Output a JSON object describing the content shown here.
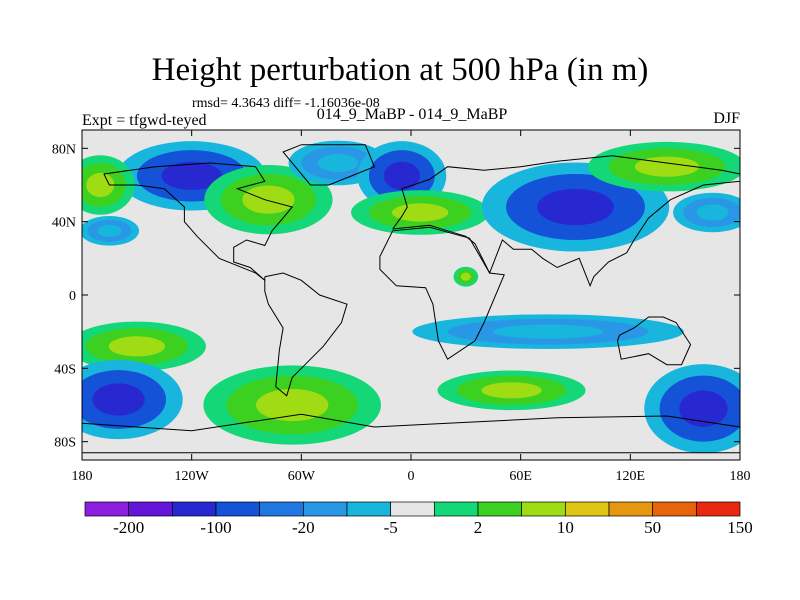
{
  "header": {
    "title": "Height perturbation at 500 hPa (in m)",
    "stats": "rmsd= 4.3643 diff= -1.16036e-08",
    "expt": "Expt = tfgwd-teyed",
    "case": "014_9_MaBP - 014_9_MaBP",
    "season": "DJF"
  },
  "chart_data": {
    "type": "heatmap",
    "title": "Height perturbation at 500 hPa (in m)",
    "xlabel": "",
    "ylabel": "",
    "xlim": [
      -180,
      180
    ],
    "ylim": [
      -90,
      90
    ],
    "x_ticks": [
      {
        "value": -180,
        "label": "180"
      },
      {
        "value": -120,
        "label": "120W"
      },
      {
        "value": -60,
        "label": "60W"
      },
      {
        "value": 0,
        "label": "0"
      },
      {
        "value": 60,
        "label": "60E"
      },
      {
        "value": 120,
        "label": "120E"
      },
      {
        "value": 180,
        "label": "180"
      }
    ],
    "y_ticks": [
      {
        "value": 80,
        "label": "80N"
      },
      {
        "value": 40,
        "label": "40N"
      },
      {
        "value": 0,
        "label": "0"
      },
      {
        "value": -40,
        "label": "40S"
      },
      {
        "value": -80,
        "label": "80S"
      }
    ],
    "colorbar": {
      "colors": [
        "#8c1fe0",
        "#6414d8",
        "#2828d0",
        "#1452d8",
        "#1e78e0",
        "#2a96e6",
        "#18b6dc",
        "#e6e6e6",
        "#14d878",
        "#3cd020",
        "#a0dc14",
        "#e0c614",
        "#e6960f",
        "#e8640c",
        "#e82810"
      ],
      "labels": [
        "-200",
        "-100",
        "-20",
        "-5",
        "2",
        "10",
        "50",
        "150"
      ]
    },
    "anomalies": [
      {
        "lon": -120,
        "lat": 65,
        "rx": 30,
        "ry": 14,
        "value": -20
      },
      {
        "lon": -170,
        "lat": 60,
        "rx": 14,
        "ry": 12,
        "value": 10
      },
      {
        "lon": -165,
        "lat": 35,
        "rx": 12,
        "ry": 6,
        "value": -5
      },
      {
        "lon": -78,
        "lat": 52,
        "rx": 26,
        "ry": 14,
        "value": 10
      },
      {
        "lon": -40,
        "lat": 72,
        "rx": 20,
        "ry": 9,
        "value": -5
      },
      {
        "lon": -5,
        "lat": 65,
        "rx": 18,
        "ry": 14,
        "value": -20
      },
      {
        "lon": 5,
        "lat": 45,
        "rx": 28,
        "ry": 9,
        "value": 10
      },
      {
        "lon": 90,
        "lat": 48,
        "rx": 38,
        "ry": 18,
        "value": -20
      },
      {
        "lon": 140,
        "lat": 70,
        "rx": 32,
        "ry": 10,
        "value": 10
      },
      {
        "lon": 165,
        "lat": 45,
        "rx": 16,
        "ry": 8,
        "value": -5
      },
      {
        "lon": -150,
        "lat": -28,
        "rx": 28,
        "ry": 10,
        "value": 10
      },
      {
        "lon": -160,
        "lat": -57,
        "rx": 26,
        "ry": 16,
        "value": -20
      },
      {
        "lon": -65,
        "lat": -60,
        "rx": 36,
        "ry": 16,
        "value": 10
      },
      {
        "lon": 75,
        "lat": -20,
        "rx": 55,
        "ry": 7,
        "value": -5
      },
      {
        "lon": 55,
        "lat": -52,
        "rx": 30,
        "ry": 8,
        "value": 10
      },
      {
        "lon": 160,
        "lat": -62,
        "rx": 24,
        "ry": 18,
        "value": -20
      },
      {
        "lon": 30,
        "lat": 10,
        "rx": 5,
        "ry": 4,
        "value": 10
      }
    ]
  }
}
